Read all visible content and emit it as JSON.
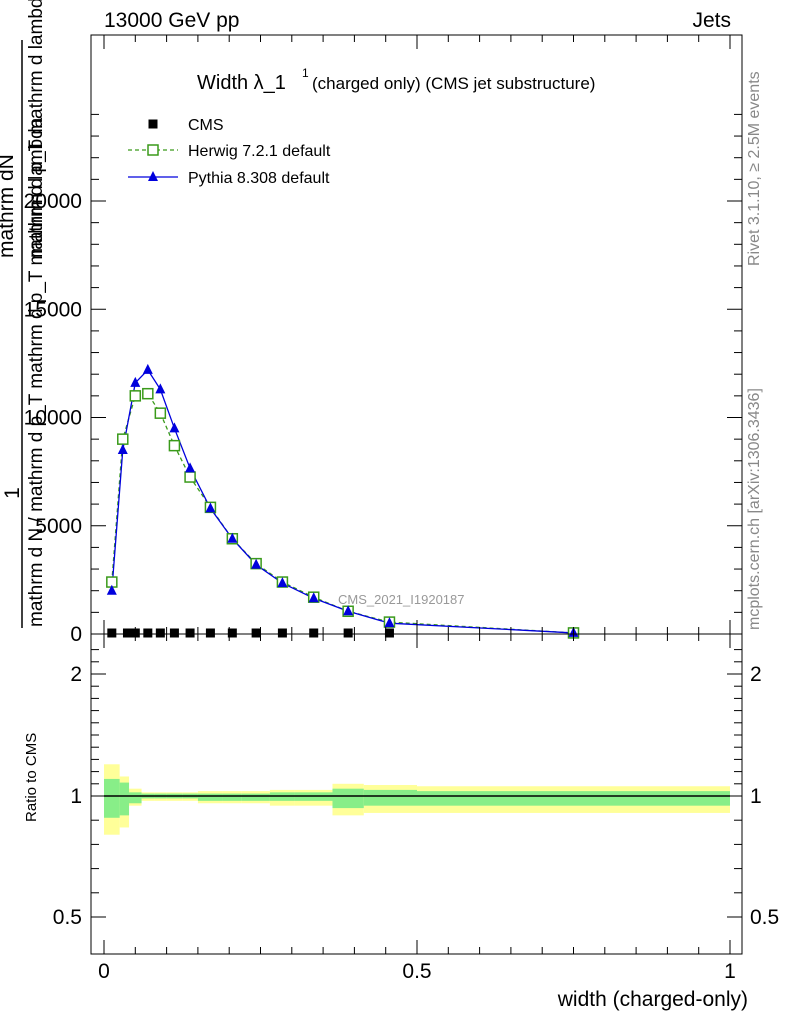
{
  "header": {
    "left": "13000 GeV pp",
    "right": "Jets"
  },
  "side_labels": {
    "rivet": "Rivet 3.1.10, ≥ 2.5M events",
    "mcplots": "mcplots.cern.ch [arXiv:1306.3436]"
  },
  "watermark": "CMS_2021_I1920187",
  "colors": {
    "cms": "#000000",
    "herwig": "#3a9a1a",
    "pythia": "#0000dd",
    "band_outer": "#ffff99",
    "band_inner": "#88ee88"
  },
  "chart_data": [
    {
      "type": "line",
      "title": "Width λ_1¹ (charged only) (CMS jet substructure)",
      "title_main": "Width λ_1",
      "title_sup": "1",
      "title_rest": "(charged only) (CMS jet substructure)",
      "ylabel_parts": [
        "1",
        "mathrm d N / mathrm d p_T mathrm d p_T mathrm d lambda",
        "mathrm dN"
      ],
      "ylabel_line1": "1",
      "ylabel_line2a": "mathrm dN",
      "ylabel_line2b": "mathrm d p_T mathrm d lambda",
      "ylabel_line3": "mathrm d N / mathrm d p_T mathrm d p_T mathrm d lambda",
      "xlim": [
        0,
        1
      ],
      "ylim": [
        0,
        25000
      ],
      "yticks": [
        0,
        5000,
        10000,
        15000,
        20000
      ],
      "ytick_labels": [
        "0",
        "5000",
        "10000",
        "15000",
        "20000"
      ],
      "grid": false,
      "legend_position": "top-left",
      "series": [
        {
          "name": "CMS",
          "marker": "square",
          "x": [
            0.0125,
            0.0375,
            0.05,
            0.07,
            0.09,
            0.1125,
            0.1375,
            0.17,
            0.205,
            0.243,
            0.285,
            0.335,
            0.39,
            0.456
          ],
          "y": [
            0,
            0,
            0,
            0,
            0,
            0,
            0,
            0,
            0,
            0,
            0,
            0,
            0,
            0
          ]
        },
        {
          "name": "Herwig 7.2.1 default",
          "marker": "open-square",
          "x": [
            0.0125,
            0.03,
            0.05,
            0.07,
            0.09,
            0.1125,
            0.1375,
            0.17,
            0.205,
            0.243,
            0.285,
            0.335,
            0.39,
            0.456,
            0.75
          ],
          "y": [
            2400,
            9000,
            11000,
            11100,
            10200,
            8700,
            7250,
            5850,
            4400,
            3250,
            2400,
            1700,
            1050,
            550,
            50
          ]
        },
        {
          "name": "Pythia 8.308 default",
          "marker": "triangle",
          "x": [
            0.0125,
            0.03,
            0.05,
            0.07,
            0.09,
            0.1125,
            0.1375,
            0.17,
            0.205,
            0.243,
            0.285,
            0.335,
            0.39,
            0.456,
            0.75
          ],
          "y": [
            2000,
            8500,
            11600,
            12200,
            11300,
            9500,
            7650,
            5800,
            4400,
            3200,
            2350,
            1650,
            1050,
            500,
            50
          ]
        }
      ]
    },
    {
      "type": "line",
      "ylabel": "Ratio to CMS",
      "xlabel": "width (charged-only)",
      "xlim": [
        0,
        1
      ],
      "ylim": [
        0.4,
        2.3
      ],
      "yticks": [
        0.5,
        1,
        2
      ],
      "ytick_labels": [
        "0.5",
        "1",
        "2"
      ],
      "xticks": [
        0,
        0.5,
        1
      ],
      "xtick_labels": [
        "0",
        "0.5",
        "1"
      ],
      "band_edges": [
        0,
        0.025,
        0.04,
        0.06,
        0.08,
        0.1,
        0.125,
        0.15,
        0.19,
        0.22,
        0.265,
        0.305,
        0.365,
        0.415,
        0.5,
        1.0
      ],
      "outer_band": [
        [
          0.84,
          1.26
        ],
        [
          0.87,
          1.16
        ],
        [
          0.96,
          1.06
        ],
        [
          0.98,
          1.03
        ],
        [
          0.98,
          1.03
        ],
        [
          0.98,
          1.03
        ],
        [
          0.98,
          1.03
        ],
        [
          0.97,
          1.04
        ],
        [
          0.97,
          1.04
        ],
        [
          0.97,
          1.04
        ],
        [
          0.96,
          1.05
        ],
        [
          0.96,
          1.05
        ],
        [
          0.92,
          1.1
        ],
        [
          0.93,
          1.09
        ],
        [
          0.93,
          1.08
        ]
      ],
      "inner_band": [
        [
          0.91,
          1.14
        ],
        [
          0.92,
          1.11
        ],
        [
          0.97,
          1.03
        ],
        [
          0.99,
          1.02
        ],
        [
          0.99,
          1.02
        ],
        [
          0.99,
          1.02
        ],
        [
          0.99,
          1.02
        ],
        [
          0.98,
          1.02
        ],
        [
          0.98,
          1.02
        ],
        [
          0.98,
          1.02
        ],
        [
          0.98,
          1.03
        ],
        [
          0.98,
          1.03
        ],
        [
          0.95,
          1.06
        ],
        [
          0.96,
          1.05
        ],
        [
          0.96,
          1.04
        ]
      ]
    }
  ]
}
